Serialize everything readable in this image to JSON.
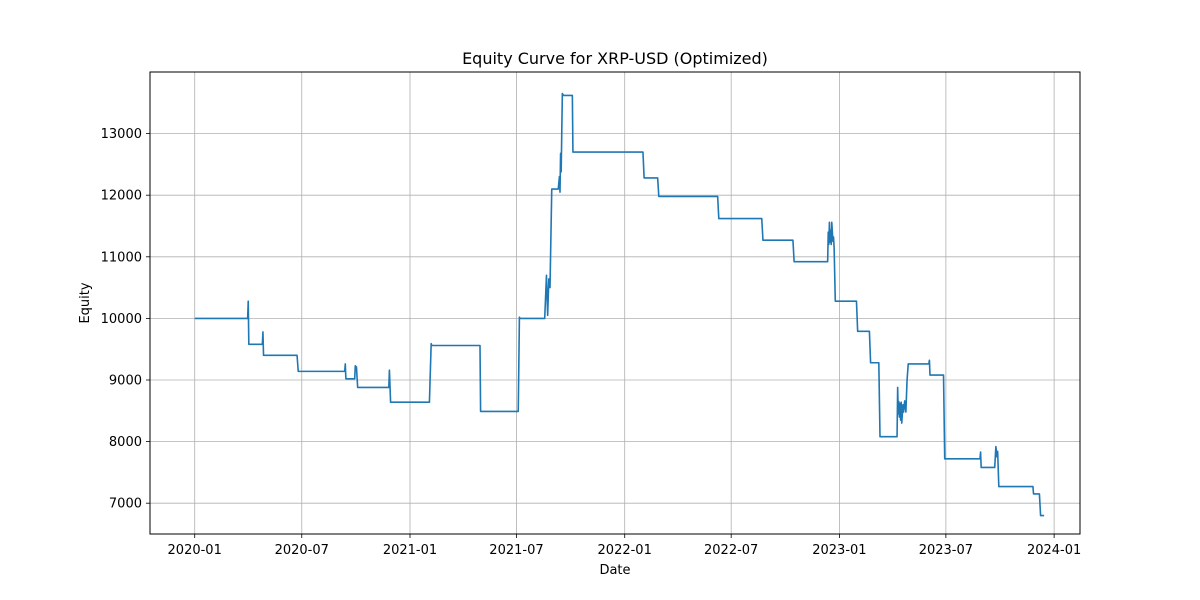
{
  "chart_data": {
    "type": "line",
    "title": "Equity Curve for XRP-USD (Optimized)",
    "xlabel": "Date",
    "ylabel": "Equity",
    "grid": true,
    "legend": "none",
    "xlim": [
      "2019-10-17",
      "2024-02-14"
    ],
    "ylim": [
      6500,
      14000
    ],
    "xticks": [
      "2020-01",
      "2020-07",
      "2021-01",
      "2021-07",
      "2022-01",
      "2022-07",
      "2023-01",
      "2023-07",
      "2024-01"
    ],
    "yticks": [
      7000,
      8000,
      9000,
      10000,
      11000,
      12000,
      13000
    ],
    "series": [
      {
        "color": "#1f77b4",
        "points": [
          [
            "2020-01-01",
            10000
          ],
          [
            "2020-03-31",
            10000
          ],
          [
            "2020-04-01",
            10280
          ],
          [
            "2020-04-02",
            9580
          ],
          [
            "2020-04-25",
            9580
          ],
          [
            "2020-04-26",
            9780
          ],
          [
            "2020-04-27",
            9400
          ],
          [
            "2020-06-23",
            9400
          ],
          [
            "2020-06-25",
            9140
          ],
          [
            "2020-09-12",
            9140
          ],
          [
            "2020-09-13",
            9260
          ],
          [
            "2020-09-14",
            9020
          ],
          [
            "2020-09-29",
            9020
          ],
          [
            "2020-09-30",
            9230
          ],
          [
            "2020-10-02",
            9210
          ],
          [
            "2020-10-04",
            8880
          ],
          [
            "2020-11-26",
            8880
          ],
          [
            "2020-11-27",
            9160
          ],
          [
            "2020-11-29",
            8640
          ],
          [
            "2021-02-03",
            8640
          ],
          [
            "2021-02-06",
            9590
          ],
          [
            "2021-02-07",
            9560
          ],
          [
            "2021-04-30",
            9560
          ],
          [
            "2021-05-01",
            8490
          ],
          [
            "2021-07-04",
            8490
          ],
          [
            "2021-07-06",
            10020
          ],
          [
            "2021-07-07",
            10000
          ],
          [
            "2021-08-18",
            10000
          ],
          [
            "2021-08-21",
            10700
          ],
          [
            "2021-08-23",
            10050
          ],
          [
            "2021-08-25",
            10640
          ],
          [
            "2021-08-27",
            10500
          ],
          [
            "2021-08-30",
            12100
          ],
          [
            "2021-09-10",
            12100
          ],
          [
            "2021-09-12",
            12300
          ],
          [
            "2021-09-13",
            12050
          ],
          [
            "2021-09-14",
            12680
          ],
          [
            "2021-09-15",
            12380
          ],
          [
            "2021-09-17",
            13650
          ],
          [
            "2021-09-19",
            13620
          ],
          [
            "2021-10-04",
            13620
          ],
          [
            "2021-10-05",
            12700
          ],
          [
            "2022-02-01",
            12700
          ],
          [
            "2022-02-03",
            12280
          ],
          [
            "2022-02-26",
            12280
          ],
          [
            "2022-02-28",
            11980
          ],
          [
            "2022-06-08",
            11980
          ],
          [
            "2022-06-10",
            11620
          ],
          [
            "2022-08-22",
            11620
          ],
          [
            "2022-08-24",
            11270
          ],
          [
            "2022-10-14",
            11270
          ],
          [
            "2022-10-16",
            10920
          ],
          [
            "2022-12-12",
            10920
          ],
          [
            "2022-12-13",
            11400
          ],
          [
            "2022-12-14",
            11200
          ],
          [
            "2022-12-15",
            11560
          ],
          [
            "2022-12-16",
            11240
          ],
          [
            "2022-12-17",
            11430
          ],
          [
            "2022-12-18",
            11200
          ],
          [
            "2022-12-19",
            11560
          ],
          [
            "2022-12-21",
            11250
          ],
          [
            "2022-12-22",
            11320
          ],
          [
            "2022-12-23",
            11150
          ],
          [
            "2022-12-25",
            10280
          ],
          [
            "2023-01-30",
            10280
          ],
          [
            "2023-02-01",
            9790
          ],
          [
            "2023-02-21",
            9790
          ],
          [
            "2023-02-23",
            9280
          ],
          [
            "2023-03-09",
            9280
          ],
          [
            "2023-03-11",
            8080
          ],
          [
            "2023-04-09",
            8080
          ],
          [
            "2023-04-10",
            8880
          ],
          [
            "2023-04-11",
            8450
          ],
          [
            "2023-04-12",
            8650
          ],
          [
            "2023-04-13",
            8400
          ],
          [
            "2023-04-14",
            8620
          ],
          [
            "2023-04-15",
            8350
          ],
          [
            "2023-04-16",
            8640
          ],
          [
            "2023-04-17",
            8300
          ],
          [
            "2023-04-19",
            8600
          ],
          [
            "2023-04-20",
            8480
          ],
          [
            "2023-04-22",
            8660
          ],
          [
            "2023-04-24",
            8480
          ],
          [
            "2023-04-26",
            9000
          ],
          [
            "2023-04-28",
            9260
          ],
          [
            "2023-06-02",
            9260
          ],
          [
            "2023-06-03",
            9320
          ],
          [
            "2023-06-04",
            9080
          ],
          [
            "2023-06-27",
            9080
          ],
          [
            "2023-06-29",
            7720
          ],
          [
            "2023-08-28",
            7720
          ],
          [
            "2023-08-29",
            7830
          ],
          [
            "2023-08-30",
            7580
          ],
          [
            "2023-09-22",
            7580
          ],
          [
            "2023-09-24",
            7920
          ],
          [
            "2023-09-26",
            7750
          ],
          [
            "2023-09-27",
            7840
          ],
          [
            "2023-09-29",
            7270
          ],
          [
            "2023-11-26",
            7270
          ],
          [
            "2023-11-27",
            7150
          ],
          [
            "2023-12-07",
            7150
          ],
          [
            "2023-12-09",
            6800
          ],
          [
            "2023-12-15",
            6800
          ]
        ]
      }
    ]
  }
}
